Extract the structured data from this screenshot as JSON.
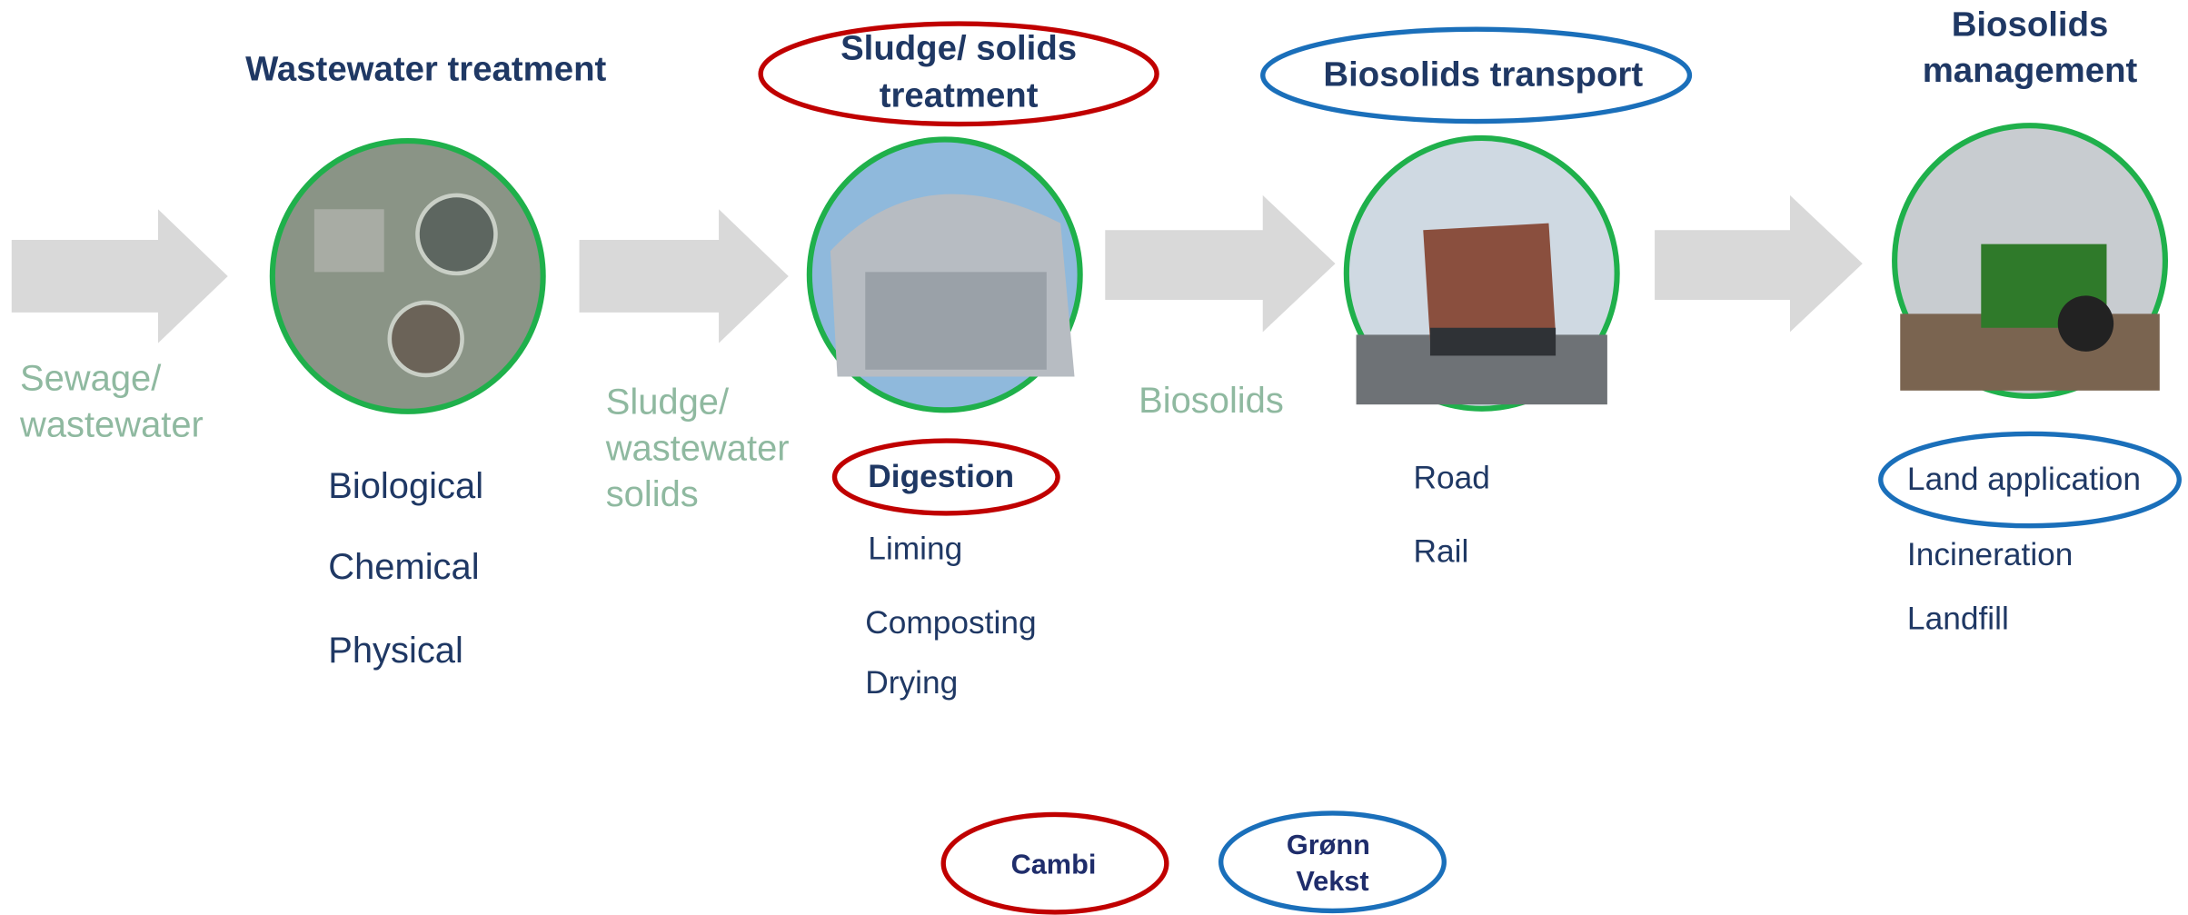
{
  "stages": [
    {
      "title": [
        "Wastewater treatment"
      ],
      "items": [
        "Biological",
        "Chemical",
        "Physical"
      ]
    },
    {
      "title": [
        "Sludge/ solids",
        "treatment"
      ],
      "items": [
        "Digestion",
        "Liming",
        "Composting",
        "Drying"
      ]
    },
    {
      "title": [
        "Biosolids transport"
      ],
      "items": [
        "Road",
        "Rail"
      ]
    },
    {
      "title": [
        "Biosolids",
        "management"
      ],
      "items": [
        "Land application",
        "Incineration",
        "Landfill"
      ]
    }
  ],
  "flow_labels": [
    [
      "Sewage/",
      "wastewater"
    ],
    [
      "Sludge/",
      "wastewater",
      "solids"
    ],
    [
      "Biosolids"
    ]
  ],
  "legend": [
    [
      "Cambi"
    ],
    [
      "Grønn",
      "Vekst"
    ]
  ]
}
